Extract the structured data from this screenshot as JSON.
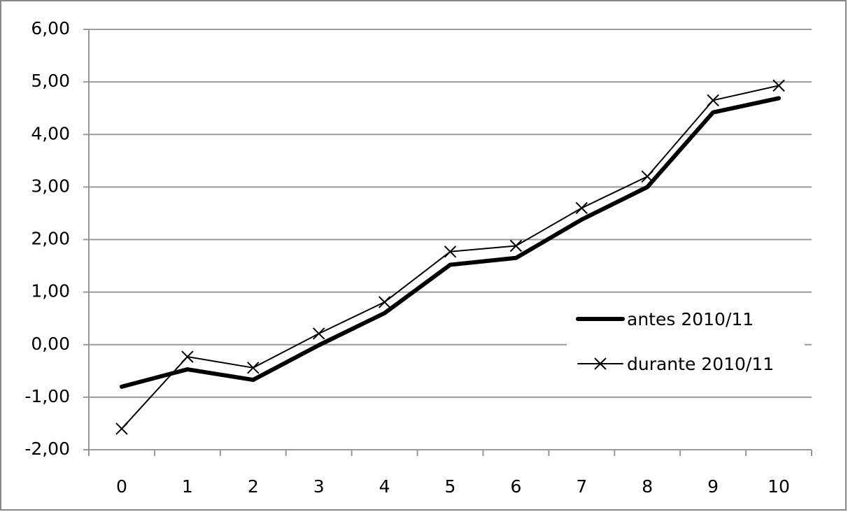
{
  "chart_data": {
    "type": "line",
    "categories": [
      "0",
      "1",
      "2",
      "3",
      "4",
      "5",
      "6",
      "7",
      "8",
      "9",
      "10"
    ],
    "series": [
      {
        "name": "antes 2010/11",
        "color": "#000000",
        "width": 6,
        "marker": "none",
        "values": [
          -0.8,
          -0.47,
          -0.67,
          -0.01,
          0.6,
          1.52,
          1.65,
          2.38,
          3.0,
          4.42,
          4.69
        ]
      },
      {
        "name": "durante 2010/11",
        "color": "#000000",
        "width": 2,
        "marker": "x",
        "values": [
          -1.6,
          -0.23,
          -0.44,
          0.21,
          0.81,
          1.77,
          1.88,
          2.6,
          3.2,
          4.65,
          4.93
        ]
      }
    ],
    "ylim": [
      -2,
      6
    ],
    "yticks": [
      {
        "value": -2,
        "label": "-2,00"
      },
      {
        "value": -1,
        "label": "-1,00"
      },
      {
        "value": 0,
        "label": "0,00"
      },
      {
        "value": 1,
        "label": "1,00"
      },
      {
        "value": 2,
        "label": "2,00"
      },
      {
        "value": 3,
        "label": "3,00"
      },
      {
        "value": 4,
        "label": "4,00"
      },
      {
        "value": 5,
        "label": "5,00"
      },
      {
        "value": 6,
        "label": "6,00"
      }
    ],
    "grid": true,
    "legend": "right"
  }
}
